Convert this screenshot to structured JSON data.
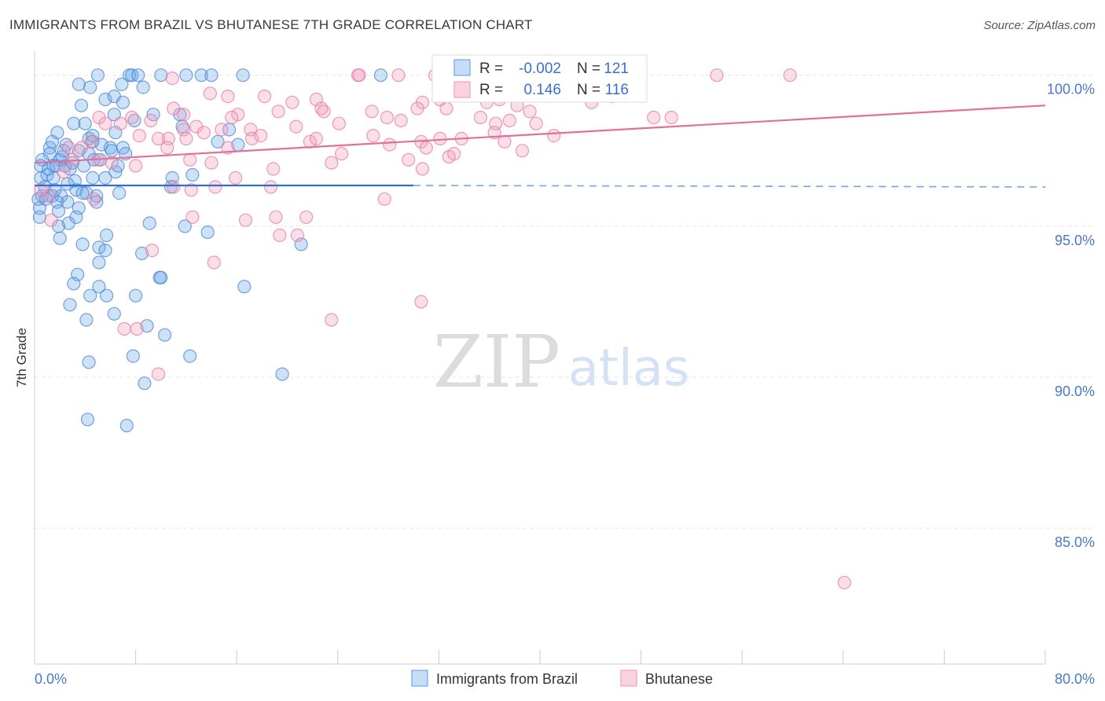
{
  "header": {
    "title": "IMMIGRANTS FROM BRAZIL VS BHUTANESE 7TH GRADE CORRELATION CHART",
    "source": "Source: ZipAtlas.com"
  },
  "watermark": {
    "zip": "ZIP",
    "atlas": "atlas"
  },
  "legend": {
    "r_label": "R =",
    "n_label": "N =",
    "rows": [
      {
        "r": "-0.002",
        "n": "121",
        "color": "#6fa8e8"
      },
      {
        "r": "0.146",
        "n": "116",
        "color": "#f2a0bc"
      }
    ]
  },
  "chart_data": {
    "type": "scatter",
    "title": "IMMIGRANTS FROM BRAZIL VS BHUTANESE 7TH GRADE CORRELATION CHART",
    "xlabel": "",
    "ylabel": "7th Grade",
    "xlim": [
      0,
      80
    ],
    "ylim": [
      80.5,
      100.8
    ],
    "x_tick_labels": [
      "0.0%",
      "80.0%"
    ],
    "y_ticks": [
      85,
      90,
      95,
      100
    ],
    "y_tick_labels": [
      "85.0%",
      "90.0%",
      "95.0%",
      "100.0%"
    ],
    "grid": true,
    "legend_position": "bottom",
    "series": [
      {
        "name": "Immigrants from Brazil",
        "color": "#6fa8e8",
        "stroke": "#4a86d6",
        "trend": {
          "x": [
            0,
            30,
            80
          ],
          "y": [
            96.35,
            96.35,
            96.3
          ]
        },
        "points": [
          [
            5,
            100
          ],
          [
            7.5,
            100
          ],
          [
            7.7,
            100
          ],
          [
            8.2,
            100
          ],
          [
            10,
            100
          ],
          [
            12,
            100
          ],
          [
            13.2,
            100
          ],
          [
            14,
            100
          ],
          [
            16.5,
            100
          ],
          [
            27.4,
            100
          ],
          [
            3.5,
            99.7
          ],
          [
            4.4,
            99.6
          ],
          [
            6.9,
            99.7
          ],
          [
            8.6,
            99.6
          ],
          [
            5.6,
            99.2
          ],
          [
            6.3,
            99.3
          ],
          [
            7,
            99.1
          ],
          [
            3.7,
            99
          ],
          [
            6.3,
            98.7
          ],
          [
            11.5,
            98.7
          ],
          [
            3.1,
            98.4
          ],
          [
            4,
            98.4
          ],
          [
            6.4,
            98.1
          ],
          [
            7.9,
            98.5
          ],
          [
            11.7,
            98.3
          ],
          [
            15.4,
            98.2
          ],
          [
            1.8,
            98.1
          ],
          [
            2.5,
            97.7
          ],
          [
            4.3,
            97.9
          ],
          [
            4.6,
            97.8
          ],
          [
            5.3,
            97.7
          ],
          [
            6,
            97.6
          ],
          [
            7,
            97.6
          ],
          [
            3.5,
            97.5
          ],
          [
            4.3,
            97.4
          ],
          [
            14.5,
            97.8
          ],
          [
            16.1,
            97.7
          ],
          [
            1.2,
            97.6
          ],
          [
            1.2,
            97.4
          ],
          [
            2,
            97.2
          ],
          [
            1.5,
            97
          ],
          [
            0.6,
            97.2
          ],
          [
            0.5,
            97
          ],
          [
            2.4,
            97
          ],
          [
            3.9,
            97
          ],
          [
            3,
            97.1
          ],
          [
            4.7,
            97.2
          ],
          [
            6.1,
            97.5
          ],
          [
            0.5,
            96.6
          ],
          [
            1,
            96.7
          ],
          [
            1.5,
            96.6
          ],
          [
            3.2,
            96.5
          ],
          [
            4.6,
            96.6
          ],
          [
            6.4,
            96.8
          ],
          [
            12.5,
            96.7
          ],
          [
            10.9,
            96.6
          ],
          [
            0.6,
            96
          ],
          [
            1.4,
            96
          ],
          [
            2.1,
            96
          ],
          [
            3.3,
            96.2
          ],
          [
            4.1,
            96.1
          ],
          [
            4.9,
            96
          ],
          [
            6.7,
            96.1
          ],
          [
            10.8,
            96.3
          ],
          [
            1.8,
            95.8
          ],
          [
            2.6,
            95.8
          ],
          [
            0.4,
            95.6
          ],
          [
            1.9,
            95.5
          ],
          [
            3.5,
            95.6
          ],
          [
            2.7,
            95.1
          ],
          [
            1.9,
            95
          ],
          [
            9.1,
            95.1
          ],
          [
            11.9,
            95
          ],
          [
            5.7,
            94.7
          ],
          [
            13.7,
            94.8
          ],
          [
            2,
            94.6
          ],
          [
            3.8,
            94.4
          ],
          [
            5.1,
            94.3
          ],
          [
            5.6,
            94.2
          ],
          [
            8.5,
            94.1
          ],
          [
            21.1,
            94.4
          ],
          [
            5.1,
            93.8
          ],
          [
            3.4,
            93.4
          ],
          [
            9.9,
            93.3
          ],
          [
            10,
            93.3
          ],
          [
            3.1,
            93.1
          ],
          [
            5.1,
            93
          ],
          [
            16.6,
            93
          ],
          [
            4.4,
            92.7
          ],
          [
            5.7,
            92.7
          ],
          [
            8,
            92.7
          ],
          [
            2.8,
            92.4
          ],
          [
            6.3,
            92.1
          ],
          [
            4.1,
            91.9
          ],
          [
            8.9,
            91.7
          ],
          [
            10.3,
            91.4
          ],
          [
            4.3,
            90.5
          ],
          [
            7.8,
            90.7
          ],
          [
            12.3,
            90.7
          ],
          [
            8.7,
            89.8
          ],
          [
            19.6,
            90.1
          ],
          [
            4.2,
            88.6
          ],
          [
            7.3,
            88.4
          ],
          [
            0.3,
            95.9
          ],
          [
            0.8,
            96.3
          ],
          [
            1.4,
            97.8
          ],
          [
            2.2,
            97.3
          ],
          [
            2.8,
            96.9
          ],
          [
            3.8,
            96.1
          ],
          [
            4.6,
            98
          ],
          [
            5.2,
            97.2
          ],
          [
            6.6,
            97
          ],
          [
            9.4,
            98.7
          ],
          [
            2.3,
            97.5
          ],
          [
            1.1,
            96.9
          ],
          [
            0.9,
            95.9
          ],
          [
            3.3,
            95.3
          ],
          [
            4.9,
            95.8
          ],
          [
            5.6,
            96.6
          ],
          [
            7.2,
            97.4
          ],
          [
            2.6,
            96.4
          ],
          [
            0.4,
            95.3
          ],
          [
            1.6,
            96.2
          ],
          [
            1.7,
            97
          ]
        ]
      },
      {
        "name": "Bhutanese",
        "color": "#f2a0bc",
        "stroke": "#e87aa0",
        "trend": {
          "x": [
            0,
            80
          ],
          "y": [
            97.1,
            99.0
          ]
        },
        "points": [
          [
            25.6,
            100
          ],
          [
            25.7,
            100
          ],
          [
            28.8,
            100
          ],
          [
            31.7,
            100
          ],
          [
            37.6,
            100
          ],
          [
            40.2,
            100
          ],
          [
            41.7,
            100
          ],
          [
            47.2,
            100
          ],
          [
            54,
            100
          ],
          [
            59.8,
            100
          ],
          [
            41.3,
            99.8
          ],
          [
            10.9,
            99.9
          ],
          [
            13.9,
            99.4
          ],
          [
            15.3,
            99.3
          ],
          [
            18.2,
            99.3
          ],
          [
            22.3,
            99.2
          ],
          [
            22.7,
            98.9
          ],
          [
            22.9,
            98.8
          ],
          [
            32.1,
            99.2
          ],
          [
            32.6,
            98.9
          ],
          [
            30.7,
            99.1
          ],
          [
            35.8,
            99.1
          ],
          [
            35.6,
            99.4
          ],
          [
            36,
            99.4
          ],
          [
            36.8,
            99.2
          ],
          [
            38.2,
            99
          ],
          [
            44.1,
            99.1
          ],
          [
            45.7,
            99.3
          ],
          [
            16.1,
            98.7
          ],
          [
            11,
            98.9
          ],
          [
            11.8,
            98.7
          ],
          [
            15.6,
            98.6
          ],
          [
            19.3,
            98.8
          ],
          [
            20.4,
            99.1
          ],
          [
            26.7,
            98.8
          ],
          [
            30.3,
            98.9
          ],
          [
            29,
            98.5
          ],
          [
            27.9,
            98.6
          ],
          [
            35.3,
            98.6
          ],
          [
            36.5,
            98.4
          ],
          [
            37.6,
            98.5
          ],
          [
            39.2,
            98.8
          ],
          [
            49,
            98.6
          ],
          [
            50.4,
            98.6
          ],
          [
            7.7,
            98.6
          ],
          [
            5.1,
            98.6
          ],
          [
            9.2,
            98.5
          ],
          [
            6.8,
            98.4
          ],
          [
            5.6,
            98.4
          ],
          [
            12.8,
            98.3
          ],
          [
            13.4,
            98.1
          ],
          [
            11.8,
            98.2
          ],
          [
            14.8,
            98.2
          ],
          [
            17.1,
            98.2
          ],
          [
            17.9,
            98
          ],
          [
            20.7,
            98.3
          ],
          [
            24.1,
            98.4
          ],
          [
            9.8,
            97.9
          ],
          [
            8.3,
            98
          ],
          [
            10.6,
            97.9
          ],
          [
            12,
            97.9
          ],
          [
            4.5,
            97.8
          ],
          [
            2.7,
            97.6
          ],
          [
            3.7,
            97.6
          ],
          [
            10.5,
            97.6
          ],
          [
            15.3,
            97.6
          ],
          [
            17.2,
            97.9
          ],
          [
            21.8,
            97.8
          ],
          [
            22.3,
            97.9
          ],
          [
            26.8,
            98
          ],
          [
            30.6,
            97.8
          ],
          [
            32.1,
            97.9
          ],
          [
            33.8,
            97.9
          ],
          [
            31,
            97.6
          ],
          [
            28.1,
            97.7
          ],
          [
            24.3,
            97.4
          ],
          [
            29.6,
            97.2
          ],
          [
            32.8,
            97.3
          ],
          [
            33.2,
            97.4
          ],
          [
            36.4,
            98.1
          ],
          [
            37.2,
            97.8
          ],
          [
            38.6,
            97.5
          ],
          [
            41.1,
            98
          ],
          [
            39.7,
            98.4
          ],
          [
            3,
            97.2
          ],
          [
            5,
            97.2
          ],
          [
            6.1,
            97.1
          ],
          [
            8,
            97
          ],
          [
            12.3,
            97.2
          ],
          [
            14,
            97.1
          ],
          [
            18.9,
            96.9
          ],
          [
            23.5,
            97.1
          ],
          [
            30.7,
            96.9
          ],
          [
            15.9,
            96.6
          ],
          [
            11,
            96.3
          ],
          [
            12.4,
            96.2
          ],
          [
            14.3,
            96.3
          ],
          [
            18.7,
            96.3
          ],
          [
            27.7,
            95.9
          ],
          [
            2.3,
            96.8
          ],
          [
            1.1,
            96
          ],
          [
            4.7,
            95.9
          ],
          [
            0.5,
            96.2
          ],
          [
            1.3,
            95.2
          ],
          [
            12.5,
            95.3
          ],
          [
            16.7,
            95.2
          ],
          [
            19.1,
            95.3
          ],
          [
            21.5,
            95.3
          ],
          [
            19.4,
            94.7
          ],
          [
            20.8,
            94.7
          ],
          [
            9.3,
            94.2
          ],
          [
            14.2,
            93.8
          ],
          [
            30.6,
            92.5
          ],
          [
            23.5,
            91.9
          ],
          [
            7.1,
            91.6
          ],
          [
            8.1,
            91.6
          ],
          [
            9.8,
            90.1
          ],
          [
            64.1,
            83.2
          ]
        ]
      }
    ]
  },
  "bottom_legend": [
    "Immigrants from Brazil",
    "Bhutanese"
  ]
}
